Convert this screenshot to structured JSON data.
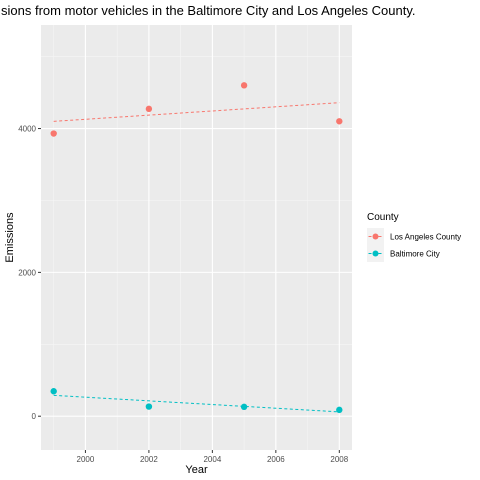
{
  "chart_data": {
    "type": "scatter",
    "title": "sions from motor vehicles in the Baltimore City and Los Angeles County.",
    "xlabel": "Year",
    "ylabel": "Emissions",
    "xlim": [
      1998.6,
      2008.4
    ],
    "ylim": [
      -470,
      5440
    ],
    "x_ticks": [
      2000,
      2002,
      2004,
      2006,
      2008
    ],
    "x_tick_labels": [
      "2000",
      "2002",
      "2004",
      "2006",
      "2008"
    ],
    "y_ticks": [
      0,
      2000,
      4000
    ],
    "y_tick_labels": [
      "0",
      "2000",
      "4000"
    ],
    "grid": true,
    "legend": {
      "title": "County",
      "placement": "right",
      "entries": [
        "Los Angeles County",
        "Baltimore City"
      ]
    },
    "trend_lines": "dashed linear fit per series",
    "series": [
      {
        "name": "Los Angeles County",
        "color": "#F8766D",
        "x": [
          1999,
          2002,
          2005,
          2008
        ],
        "y": [
          3931,
          4274,
          4601,
          4101
        ],
        "trend": [
          4100,
          4360
        ]
      },
      {
        "name": "Baltimore City",
        "color": "#00BFC4",
        "x": [
          1999,
          2002,
          2005,
          2008
        ],
        "y": [
          347,
          134,
          130,
          88
        ],
        "trend": [
          290,
          60
        ]
      }
    ]
  }
}
